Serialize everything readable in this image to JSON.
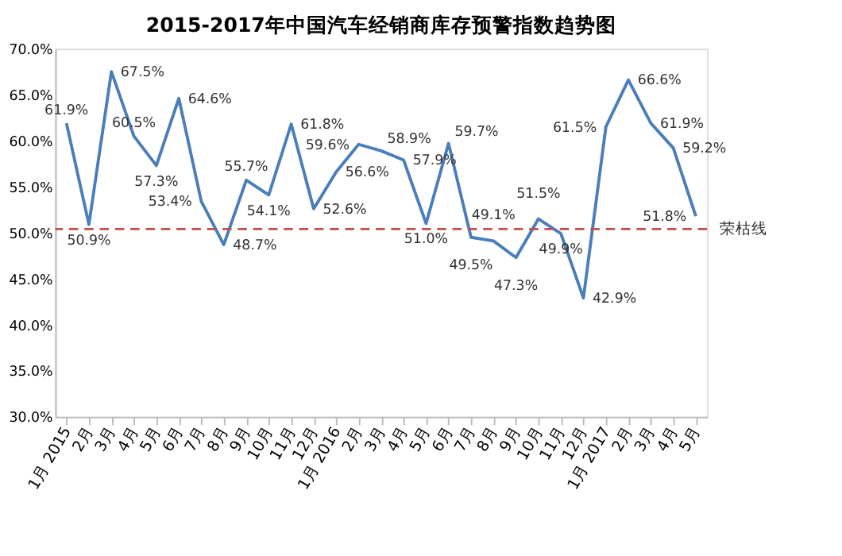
{
  "chart_data": {
    "type": "line",
    "title": "2015-2017年中国汽车经销商库存预警指数趋势图",
    "categories": [
      "1月\n2015",
      "2月",
      "3月",
      "4月",
      "5月",
      "6月",
      "7月",
      "8月",
      "9月",
      "10月",
      "11月",
      "12月",
      "1月\n2016",
      "2月",
      "3月",
      "4月",
      "5月",
      "6月",
      "7月",
      "8月",
      "9月",
      "10月",
      "11月",
      "12月",
      "1月\n2017",
      "2月",
      "3月",
      "4月",
      "5月"
    ],
    "series": [
      {
        "color": "#4a7ebb",
        "values": [
          61.9,
          50.9,
          67.5,
          60.5,
          57.3,
          64.6,
          53.4,
          48.7,
          55.7,
          54.1,
          61.8,
          52.6,
          56.6,
          59.6,
          58.9,
          57.9,
          51.0,
          59.7,
          49.5,
          49.1,
          47.3,
          51.5,
          49.9,
          42.9,
          61.5,
          66.6,
          61.9,
          59.2,
          51.8
        ],
        "value_labels": [
          "61.9%",
          "50.9%",
          "67.5%",
          "60.5%",
          "57.3%",
          "64.6%",
          "53.4%",
          "48.7%",
          "55.7%",
          "54.1%",
          "61.8%",
          "52.6%",
          "56.6%",
          "59.6%",
          "58.9%",
          "57.9%",
          "51.0%",
          "59.7%",
          "49.5%",
          "49.1%",
          "47.3%",
          "51.5%",
          "49.9%",
          "42.9%",
          "61.5%",
          "66.6%",
          "61.9%",
          "59.2%",
          "51.8%"
        ]
      }
    ],
    "ylim": [
      30,
      70
    ],
    "yticks": [
      {
        "value": 30,
        "label": "30.0%"
      },
      {
        "value": 35,
        "label": "35.0%"
      },
      {
        "value": 40,
        "label": "40.0%"
      },
      {
        "value": 45,
        "label": "45.0%"
      },
      {
        "value": 50,
        "label": "50.0%"
      },
      {
        "value": 55,
        "label": "55.0%"
      },
      {
        "value": 60,
        "label": "60.0%"
      },
      {
        "value": 65,
        "label": "65.0%"
      },
      {
        "value": 70,
        "label": "70.0%"
      }
    ],
    "ref_lines": [
      {
        "axis": "y",
        "value": 50.4,
        "label": "荣枯线",
        "color": "#c0504d",
        "line_style": "dashed"
      }
    ],
    "grid": false,
    "legend": false,
    "marker": "none",
    "line_style": "solid"
  }
}
